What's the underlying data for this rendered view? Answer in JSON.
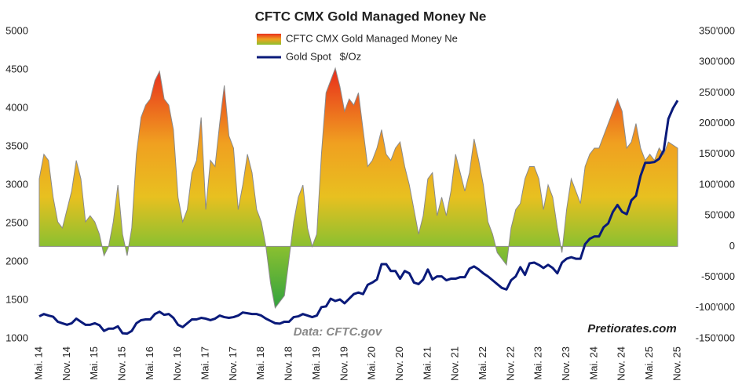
{
  "chart_data": {
    "type": "area-line",
    "title": "CFTC CMX Gold Managed Money Ne",
    "annotations": [
      "Data: CFTC.gov",
      "Pretiorates.com"
    ],
    "categories": [
      "Mai. 14",
      null,
      null,
      null,
      null,
      null,
      "Nov. 14",
      null,
      null,
      null,
      null,
      null,
      "Mai. 15",
      null,
      null,
      null,
      null,
      null,
      "Nov. 15",
      null,
      null,
      null,
      null,
      null,
      "Mai. 16",
      null,
      null,
      null,
      null,
      null,
      "Nov. 16",
      null,
      null,
      null,
      null,
      null,
      "Mai. 17",
      null,
      null,
      null,
      null,
      null,
      "Nov. 17",
      null,
      null,
      null,
      null,
      null,
      "Mai. 18",
      null,
      null,
      null,
      null,
      null,
      "Nov. 18",
      null,
      null,
      null,
      null,
      null,
      "Mai. 19",
      null,
      null,
      null,
      null,
      null,
      "Nov. 19",
      null,
      null,
      null,
      null,
      null,
      "Mai. 20",
      null,
      null,
      null,
      null,
      null,
      "Nov. 20",
      null,
      null,
      null,
      null,
      null,
      "Mai. 21",
      null,
      null,
      null,
      null,
      null,
      "Nov. 21",
      null,
      null,
      null,
      null,
      null,
      "Mai. 22",
      null,
      null,
      null,
      null,
      null,
      "Nov. 22",
      null,
      null,
      null,
      null,
      null,
      "Mai. 23",
      null,
      null,
      null,
      null,
      null,
      "Nov. 23",
      null,
      null,
      null,
      null,
      null,
      "Mai. 24",
      null,
      null,
      null,
      null,
      null,
      "Nov. 24",
      null,
      null,
      null,
      null,
      null,
      "Mai. 25",
      null,
      null,
      null,
      null,
      null,
      "Nov. 25"
    ],
    "series": [
      {
        "name": "CFTC CMX Gold Managed Money Ne",
        "color": "#f0a020",
        "axis": "y2",
        "values": [
          110000,
          150000,
          140000,
          80000,
          40000,
          30000,
          60000,
          90000,
          140000,
          110000,
          40000,
          50000,
          40000,
          20000,
          -15000,
          0,
          40000,
          100000,
          20000,
          -15000,
          30000,
          150000,
          210000,
          230000,
          240000,
          270000,
          285000,
          240000,
          230000,
          190000,
          80000,
          40000,
          60000,
          120000,
          140000,
          210000,
          60000,
          140000,
          130000,
          200000,
          262000,
          180000,
          160000,
          60000,
          100000,
          150000,
          120000,
          60000,
          40000,
          0,
          -60000,
          -100000,
          -90000,
          -80000,
          -20000,
          40000,
          80000,
          100000,
          30000,
          0,
          20000,
          150000,
          250000,
          270000,
          290000,
          260000,
          220000,
          240000,
          230000,
          250000,
          190000,
          130000,
          140000,
          160000,
          190000,
          150000,
          140000,
          160000,
          170000,
          130000,
          100000,
          60000,
          20000,
          50000,
          110000,
          120000,
          50000,
          80000,
          50000,
          90000,
          150000,
          120000,
          90000,
          120000,
          175000,
          140000,
          100000,
          40000,
          20000,
          -10000,
          -20000,
          -30000,
          30000,
          60000,
          70000,
          110000,
          130000,
          130000,
          110000,
          60000,
          100000,
          80000,
          30000,
          -10000,
          60000,
          110000,
          90000,
          70000,
          130000,
          150000,
          160000,
          160000,
          180000,
          200000,
          220000,
          240000,
          220000,
          160000,
          170000,
          200000,
          160000,
          140000,
          150000,
          140000,
          160000,
          150000,
          170000,
          165000,
          160000
        ]
      },
      {
        "name": "Gold Spot   $/Oz",
        "color": "#0a1a7a",
        "values": [
          1290,
          1320,
          1300,
          1285,
          1220,
          1200,
          1180,
          1200,
          1260,
          1220,
          1180,
          1180,
          1200,
          1175,
          1100,
          1130,
          1130,
          1160,
          1070,
          1065,
          1100,
          1200,
          1240,
          1250,
          1250,
          1320,
          1350,
          1310,
          1320,
          1270,
          1180,
          1150,
          1200,
          1250,
          1250,
          1270,
          1260,
          1240,
          1260,
          1300,
          1280,
          1270,
          1280,
          1300,
          1340,
          1330,
          1320,
          1320,
          1300,
          1260,
          1230,
          1200,
          1195,
          1220,
          1220,
          1280,
          1290,
          1320,
          1300,
          1280,
          1300,
          1410,
          1420,
          1520,
          1490,
          1510,
          1460,
          1520,
          1580,
          1600,
          1580,
          1700,
          1730,
          1770,
          1970,
          1970,
          1880,
          1880,
          1780,
          1880,
          1850,
          1730,
          1710,
          1770,
          1900,
          1770,
          1810,
          1810,
          1760,
          1780,
          1780,
          1800,
          1800,
          1910,
          1940,
          1900,
          1850,
          1810,
          1760,
          1710,
          1660,
          1640,
          1760,
          1810,
          1930,
          1830,
          1980,
          1990,
          1960,
          1920,
          1960,
          1920,
          1850,
          1990,
          2040,
          2060,
          2040,
          2040,
          2230,
          2300,
          2330,
          2330,
          2450,
          2500,
          2650,
          2740,
          2650,
          2620,
          2800,
          2860,
          3120,
          3290,
          3290,
          3300,
          3340,
          3450,
          3860,
          4000,
          4100
        ]
      }
    ],
    "ylim": [
      1000,
      5000
    ],
    "yticks": [
      1000,
      1500,
      2000,
      2500,
      3000,
      3500,
      4000,
      4500,
      5000
    ],
    "y2lim": [
      -150000,
      350000
    ],
    "y2ticks": [
      {
        "value": -150000,
        "label": "-150'000"
      },
      {
        "value": -100000,
        "label": "-100'000"
      },
      {
        "value": -50000,
        "label": "-50'000"
      },
      0,
      {
        "value": 50000,
        "label": "50'000"
      },
      {
        "value": 100000,
        "label": "100'000"
      },
      {
        "value": 150000,
        "label": "150'000"
      },
      {
        "value": 200000,
        "label": "200'000"
      },
      {
        "value": 250000,
        "label": "250'000"
      },
      {
        "value": 300000,
        "label": "300'000"
      },
      {
        "value": 350000,
        "label": "350'000"
      }
    ],
    "grid": false
  }
}
